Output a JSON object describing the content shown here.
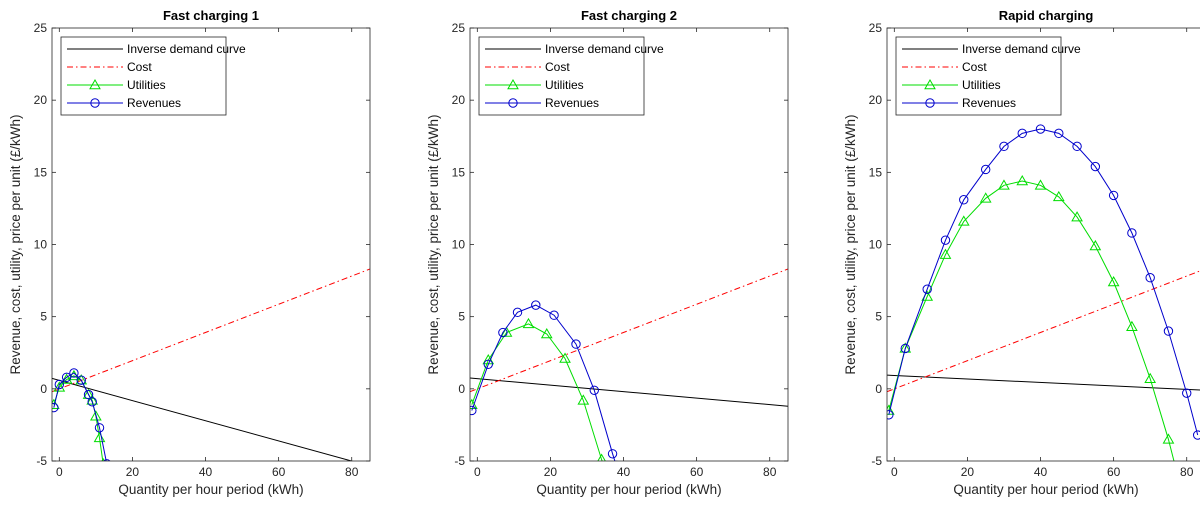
{
  "chart_data": [
    {
      "type": "line",
      "title": "Fast charging 1",
      "xlabel": "Quantity per hour period (kWh)",
      "ylabel": "Revenue, cost, utility, price per unit (£/kWh)",
      "xlim": [
        -2,
        85
      ],
      "ylim": [
        -5,
        25
      ],
      "xticks": [
        0,
        20,
        40,
        60,
        80
      ],
      "yticks": [
        -5,
        0,
        5,
        10,
        15,
        20,
        25
      ],
      "grid": false,
      "legend_position": "top-left",
      "series": [
        {
          "name": "Inverse demand curve",
          "color": "#000000",
          "dash": "solid",
          "marker": "none",
          "x": [
            -2,
            85
          ],
          "y": [
            0.72,
            -5.35
          ]
        },
        {
          "name": "Cost",
          "color": "#ff0000",
          "dash": "dashdot",
          "marker": "none",
          "x": [
            -2,
            85
          ],
          "y": [
            -0.2,
            8.3
          ]
        },
        {
          "name": "Utilities",
          "color": "#00dd00",
          "dash": "solid",
          "marker": "triangle",
          "x": [
            -1.5,
            0,
            2,
            4,
            6,
            8,
            9,
            10,
            11,
            12
          ],
          "y": [
            -1.1,
            0.1,
            0.65,
            0.9,
            0.6,
            -0.4,
            -0.8,
            -1.9,
            -3.4,
            -5.2
          ]
        },
        {
          "name": "Revenues",
          "color": "#0000cc",
          "dash": "solid",
          "marker": "circle",
          "x": [
            -1.5,
            0,
            2,
            4,
            6,
            8,
            9,
            11,
            13
          ],
          "y": [
            -1.3,
            0.3,
            0.8,
            1.1,
            0.6,
            -0.4,
            -0.9,
            -2.7,
            -5.2
          ]
        }
      ]
    },
    {
      "type": "line",
      "title": "Fast charging 2",
      "xlabel": "Quantity per hour period (kWh)",
      "ylabel": "Revenue, cost, utility, price per unit (£/kWh)",
      "xlim": [
        -2,
        85
      ],
      "ylim": [
        -5,
        25
      ],
      "xticks": [
        0,
        20,
        40,
        60,
        80
      ],
      "yticks": [
        -5,
        0,
        5,
        10,
        15,
        20,
        25
      ],
      "grid": false,
      "legend_position": "top-left",
      "series": [
        {
          "name": "Inverse demand curve",
          "color": "#000000",
          "dash": "solid",
          "marker": "none",
          "x": [
            -2,
            85
          ],
          "y": [
            0.75,
            -1.2
          ]
        },
        {
          "name": "Cost",
          "color": "#ff0000",
          "dash": "dashdot",
          "marker": "none",
          "x": [
            -2,
            85
          ],
          "y": [
            -0.2,
            8.3
          ]
        },
        {
          "name": "Utilities",
          "color": "#00dd00",
          "dash": "solid",
          "marker": "triangle",
          "x": [
            -1.5,
            3,
            8,
            14,
            19,
            24,
            29,
            34,
            35
          ],
          "y": [
            -1.1,
            2.0,
            3.9,
            4.5,
            3.8,
            2.1,
            -0.8,
            -4.9,
            -5.5
          ]
        },
        {
          "name": "Revenues",
          "color": "#0000cc",
          "dash": "solid",
          "marker": "circle",
          "x": [
            -1.5,
            3,
            7,
            11,
            16,
            21,
            27,
            32,
            37,
            38
          ],
          "y": [
            -1.5,
            1.7,
            3.9,
            5.3,
            5.8,
            5.1,
            3.1,
            -0.1,
            -4.5,
            -5.3
          ]
        }
      ]
    },
    {
      "type": "line",
      "title": "Rapid charging",
      "xlabel": "Quantity per hour period (kWh)",
      "ylabel": "Revenue, cost, utility, price per unit (£/kWh)",
      "xlim": [
        -2,
        85
      ],
      "ylim": [
        -5,
        25
      ],
      "xticks": [
        0,
        20,
        40,
        60,
        80
      ],
      "yticks": [
        -5,
        0,
        5,
        10,
        15,
        20,
        25
      ],
      "grid": false,
      "legend_position": "top-left",
      "series": [
        {
          "name": "Inverse demand curve",
          "color": "#000000",
          "dash": "solid",
          "marker": "none",
          "x": [
            -2,
            85
          ],
          "y": [
            0.95,
            -0.1
          ]
        },
        {
          "name": "Cost",
          "color": "#ff0000",
          "dash": "dashdot",
          "marker": "none",
          "x": [
            -2,
            85
          ],
          "y": [
            -0.2,
            8.3
          ]
        },
        {
          "name": "Utilities",
          "color": "#00dd00",
          "dash": "solid",
          "marker": "triangle",
          "x": [
            -1.5,
            3,
            9,
            14,
            19,
            25,
            30,
            35,
            40,
            45,
            50,
            55,
            60,
            65,
            70,
            75,
            77
          ],
          "y": [
            -1.5,
            2.8,
            6.4,
            9.3,
            11.6,
            13.2,
            14.1,
            14.4,
            14.1,
            13.3,
            11.9,
            9.9,
            7.4,
            4.3,
            0.7,
            -3.5,
            -5.5
          ]
        },
        {
          "name": "Revenues",
          "color": "#0000cc",
          "dash": "solid",
          "marker": "circle",
          "x": [
            -1.5,
            3,
            9,
            14,
            19,
            25,
            30,
            35,
            40,
            45,
            50,
            55,
            60,
            65,
            70,
            75,
            80,
            83
          ],
          "y": [
            -1.8,
            2.8,
            6.9,
            10.3,
            13.1,
            15.2,
            16.8,
            17.7,
            18.0,
            17.7,
            16.8,
            15.4,
            13.4,
            10.8,
            7.7,
            4.0,
            -0.3,
            -3.2
          ]
        }
      ]
    }
  ]
}
